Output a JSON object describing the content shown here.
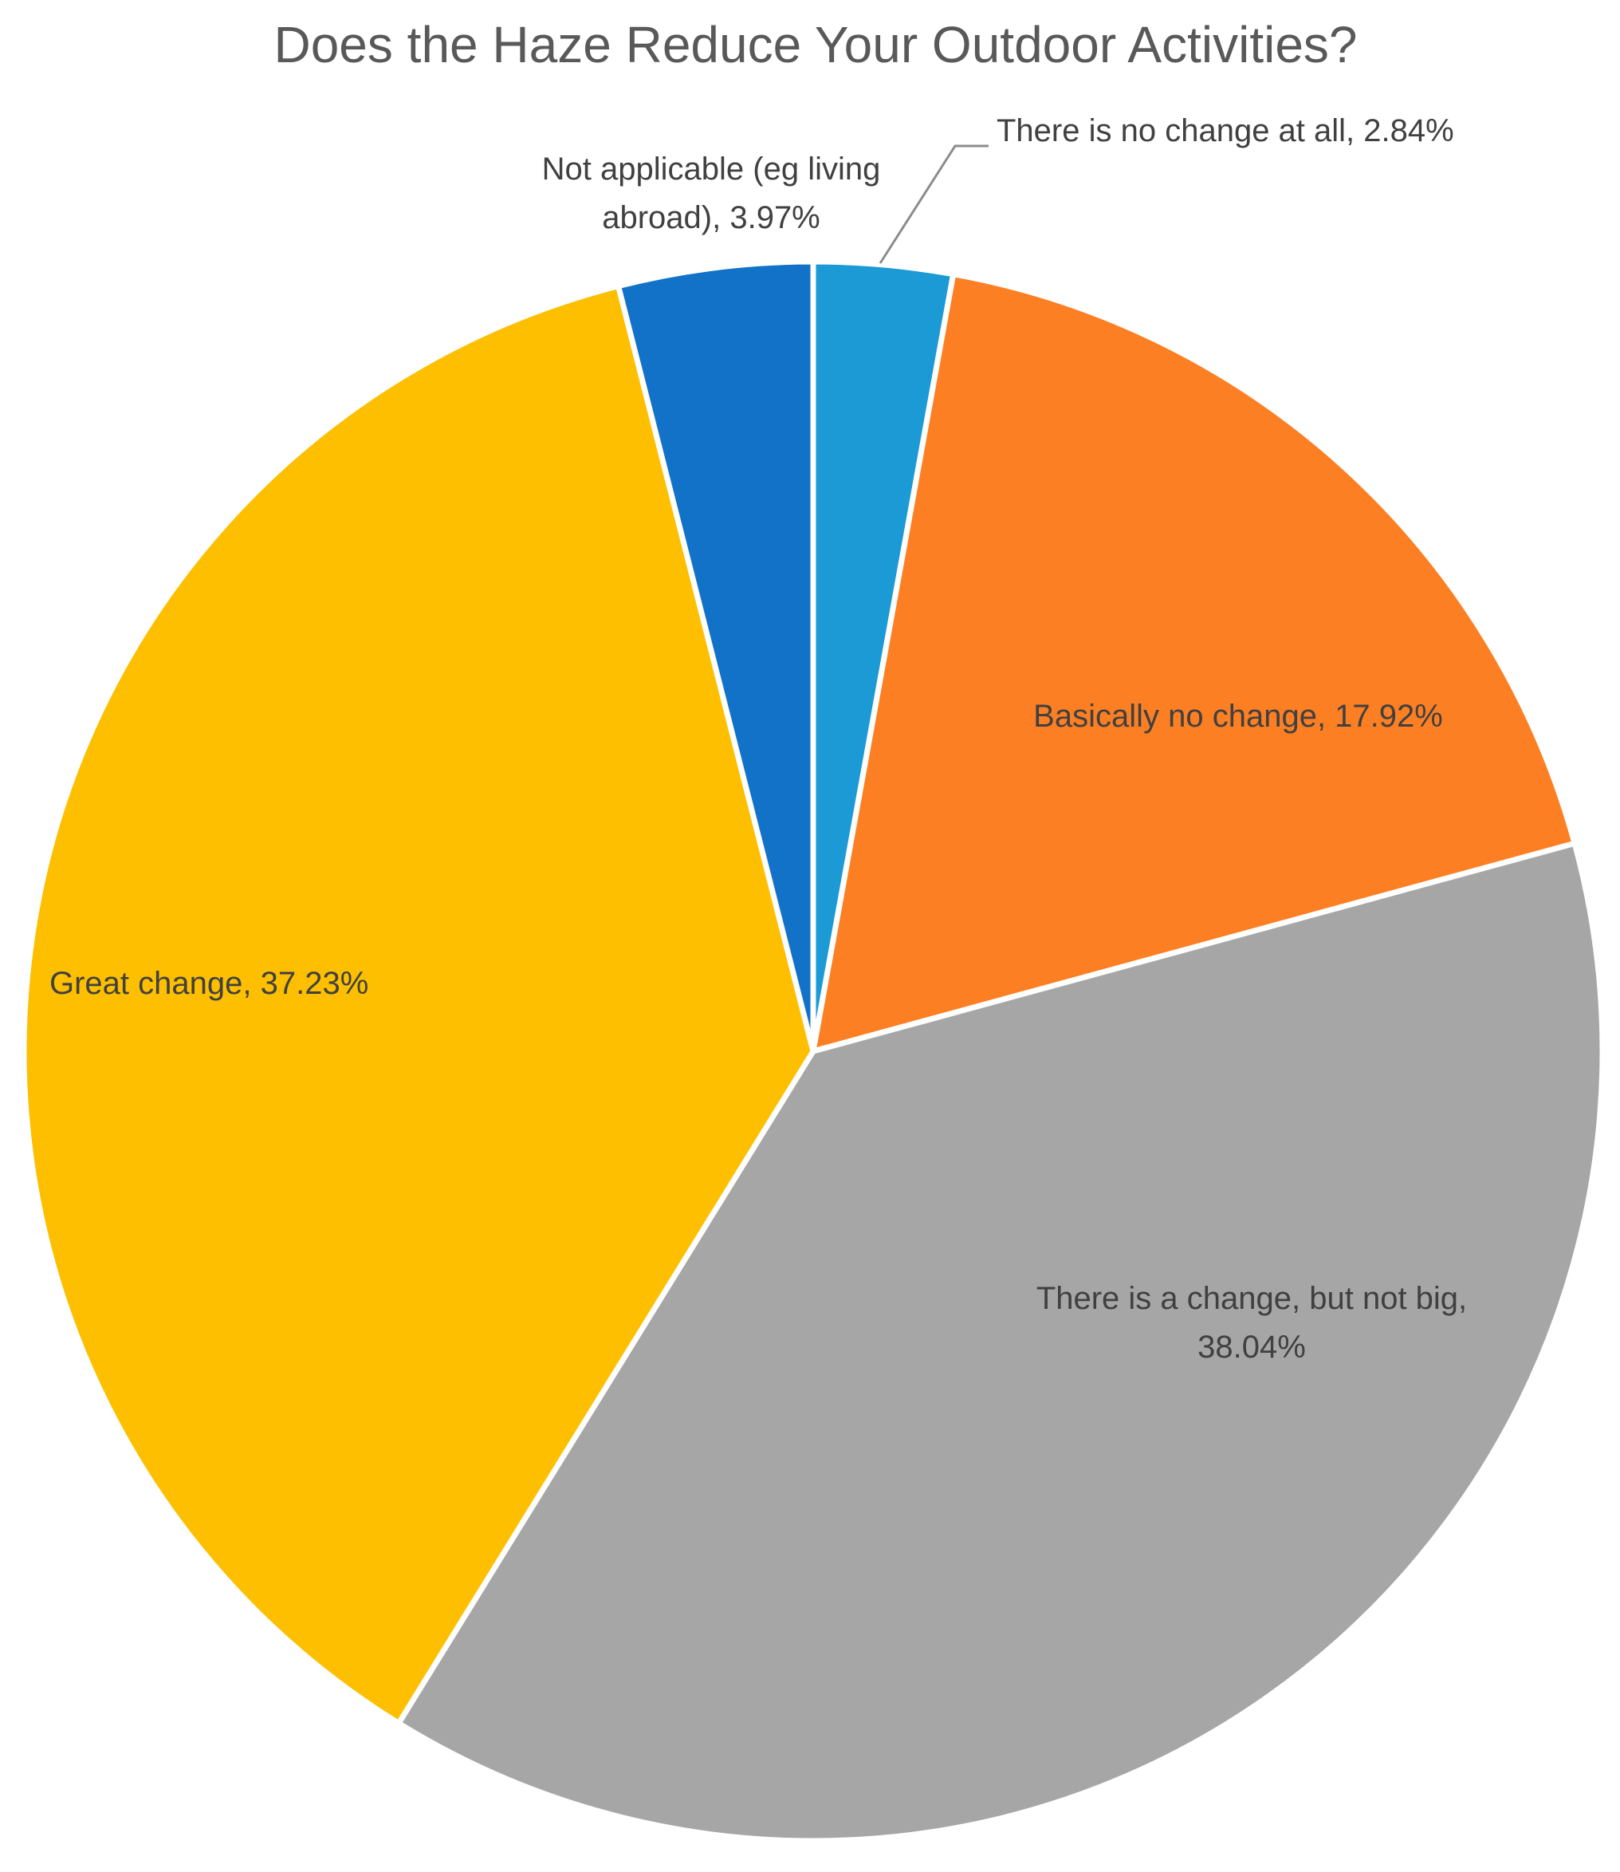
{
  "chart_data": {
    "type": "pie",
    "title": "Does the Haze Reduce Your Outdoor Activities?",
    "start": "12 o'clock",
    "direction": "clockwise",
    "slices": [
      {
        "label": "There is no change at all",
        "value": 2.84,
        "value_text": "2.84%",
        "color": "#1B9AD6",
        "label_lines": [
          "There is no change at all, 2.84%"
        ]
      },
      {
        "label": "Basically no change",
        "value": 17.92,
        "value_text": "17.92%",
        "color": "#FD7F23",
        "label_lines": [
          "Basically no change, 17.92%"
        ]
      },
      {
        "label": "There is a change, but not big",
        "value": 38.04,
        "value_text": "38.04%",
        "color": "#A6A6A6",
        "label_lines": [
          "There is a change, but not big,",
          "38.04%"
        ]
      },
      {
        "label": "Great change",
        "value": 37.23,
        "value_text": "37.23%",
        "color": "#FDBF00",
        "label_lines": [
          "Great change, 37.23%"
        ]
      },
      {
        "label": "Not applicable (eg living abroad)",
        "value": 3.97,
        "value_text": "3.97%",
        "color": "#1272C8",
        "label_lines": [
          "Not applicable (eg living",
          "abroad), 3.97%"
        ]
      }
    ]
  }
}
